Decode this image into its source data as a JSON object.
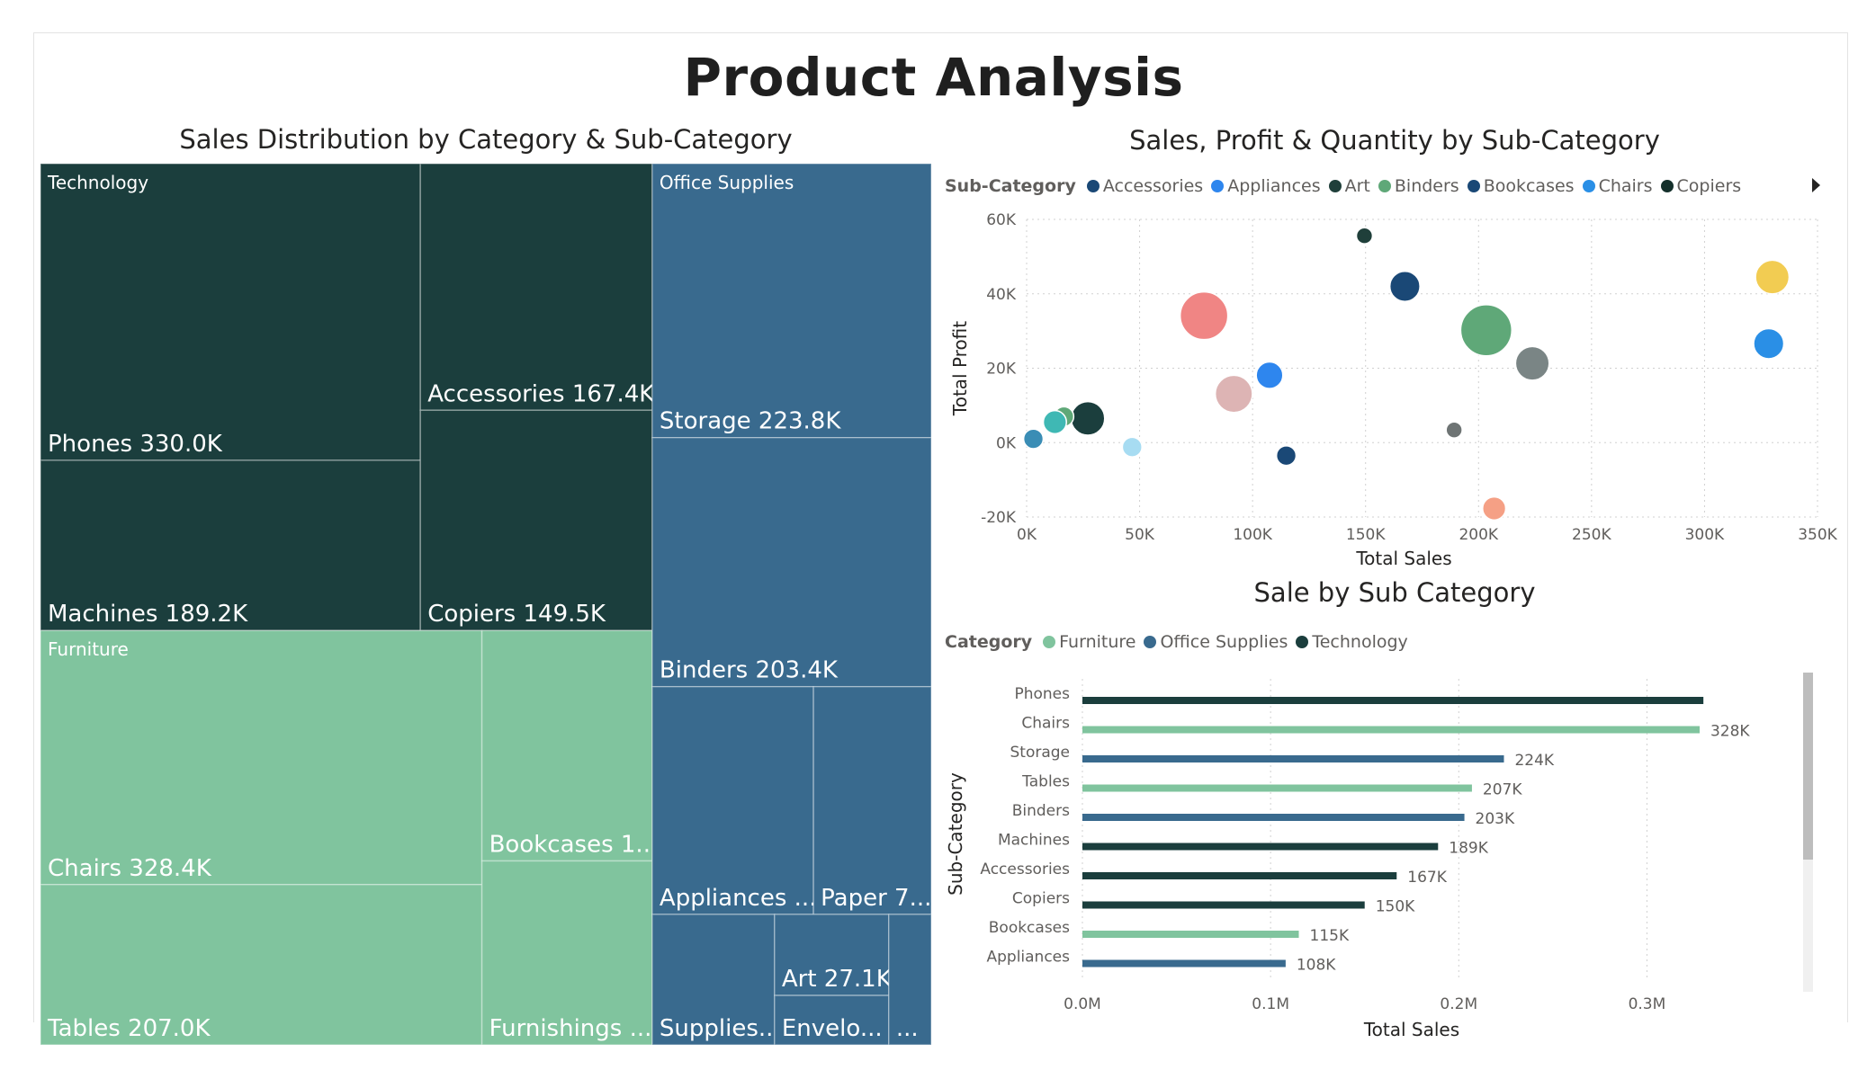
{
  "page": {
    "title": "Product Analysis"
  },
  "chart_data": [
    {
      "type": "treemap",
      "title": "Sales Distribution by Category & Sub-Category",
      "groups": [
        {
          "name": "Technology",
          "color": "#1B3E3D",
          "items": [
            {
              "label": "Phones 330.0K",
              "name": "Phones",
              "value": 330.0
            },
            {
              "label": "Machines 189.2K",
              "name": "Machines",
              "value": 189.2
            },
            {
              "label": "Accessories 167.4K",
              "name": "Accessories",
              "value": 167.4
            },
            {
              "label": "Copiers 149.5K",
              "name": "Copiers",
              "value": 149.5
            }
          ]
        },
        {
          "name": "Furniture",
          "color": "#80C49E",
          "items": [
            {
              "label": "Chairs 328.4K",
              "name": "Chairs",
              "value": 328.4
            },
            {
              "label": "Tables 207.0K",
              "name": "Tables",
              "value": 207.0
            },
            {
              "label": "Bookcases 1...",
              "name": "Bookcases",
              "value": 114.9
            },
            {
              "label": "Furnishings ...",
              "name": "Furnishings",
              "value": 91.7
            }
          ]
        },
        {
          "name": "Office Supplies",
          "color": "#396A8E",
          "items": [
            {
              "label": "Storage 223.8K",
              "name": "Storage",
              "value": 223.8
            },
            {
              "label": "Binders 203.4K",
              "name": "Binders",
              "value": 203.4
            },
            {
              "label": "Appliances ...",
              "name": "Appliances",
              "value": 107.5
            },
            {
              "label": "Paper 7...",
              "name": "Paper",
              "value": 78.5
            },
            {
              "label": "Supplies...",
              "name": "Supplies",
              "value": 46.7
            },
            {
              "label": "Art 27.1K",
              "name": "Art",
              "value": 27.1
            },
            {
              "label": "Envelo...",
              "name": "Envelopes",
              "value": 16.5
            },
            {
              "label": "...",
              "name": "Other",
              "value": 16.2
            }
          ]
        }
      ]
    },
    {
      "type": "scatter",
      "title": "Sales, Profit & Quantity by Sub-Category",
      "xlabel": "Total Sales",
      "ylabel": "Total Profit",
      "xlim": [
        0,
        350
      ],
      "ylim": [
        -20,
        60
      ],
      "x_ticks": [
        "0K",
        "50K",
        "100K",
        "150K",
        "200K",
        "250K",
        "300K",
        "350K"
      ],
      "y_ticks": [
        "60K",
        "40K",
        "20K",
        "0K",
        "-20K"
      ],
      "legend": {
        "title": "Sub-Category",
        "placement": "top",
        "items": [
          {
            "name": "Accessories",
            "color": "#1A4876"
          },
          {
            "name": "Appliances",
            "color": "#2E86EE"
          },
          {
            "name": "Art",
            "color": "#1F3F3A"
          },
          {
            "name": "Binders",
            "color": "#5FA878"
          },
          {
            "name": "Bookcases",
            "color": "#1A4876"
          },
          {
            "name": "Chairs",
            "color": "#2A8FE6"
          },
          {
            "name": "Copiers",
            "color": "#14302B"
          }
        ]
      },
      "points": [
        {
          "x": 149.5,
          "y": 55.6,
          "size": 1,
          "color": "#1F3F3A"
        },
        {
          "x": 167.4,
          "y": 42.0,
          "size": 5,
          "color": "#1A4876"
        },
        {
          "x": 330.0,
          "y": 44.5,
          "size": 6,
          "color": "#F2CC52"
        },
        {
          "x": 78.5,
          "y": 34.1,
          "size": 10,
          "color": "#F08584"
        },
        {
          "x": 203.4,
          "y": 30.2,
          "size": 11,
          "color": "#5FA878"
        },
        {
          "x": 223.8,
          "y": 21.3,
          "size": 6,
          "color": "#7A8585"
        },
        {
          "x": 328.4,
          "y": 26.6,
          "size": 5,
          "color": "#2A8FE6"
        },
        {
          "x": 107.5,
          "y": 18.1,
          "size": 4,
          "color": "#2E86EE"
        },
        {
          "x": 91.7,
          "y": 13.1,
          "size": 7,
          "color": "#DDB4B4"
        },
        {
          "x": 27.1,
          "y": 6.5,
          "size": 6,
          "color": "#1B3E3D"
        },
        {
          "x": 16.5,
          "y": 7.0,
          "size": 2,
          "color": "#5FA878"
        },
        {
          "x": 12.5,
          "y": 5.5,
          "size": 3,
          "color": "#3FB8B4"
        },
        {
          "x": 3.0,
          "y": 1.0,
          "size": 2,
          "color": "#3A8DB5"
        },
        {
          "x": 46.7,
          "y": -1.2,
          "size": 2,
          "color": "#A7DCF2"
        },
        {
          "x": 114.9,
          "y": -3.5,
          "size": 2,
          "color": "#1A4876"
        },
        {
          "x": 189.2,
          "y": 3.4,
          "size": 1,
          "color": "#6E7474"
        },
        {
          "x": 206.9,
          "y": -17.7,
          "size": 3,
          "color": "#F5A085"
        }
      ]
    },
    {
      "type": "bar",
      "orientation": "horizontal",
      "title": "Sale by Sub Category",
      "xlabel": "Total Sales",
      "ylabel": "Sub-Category",
      "xlim": [
        0,
        0.35
      ],
      "x_ticks": [
        "0.0M",
        "0.1M",
        "0.2M",
        "0.3M"
      ],
      "legend": {
        "title": "Category",
        "placement": "top-left",
        "items": [
          {
            "name": "Furniture",
            "color": "#80C49E"
          },
          {
            "name": "Office Supplies",
            "color": "#396A8E"
          },
          {
            "name": "Technology",
            "color": "#1B3E3D"
          }
        ]
      },
      "categories": [
        "Phones",
        "Chairs",
        "Storage",
        "Tables",
        "Binders",
        "Machines",
        "Accessories",
        "Copiers",
        "Bookcases",
        "Appliances"
      ],
      "bars": [
        {
          "category": "Phones",
          "series": "Technology",
          "value": 0.33,
          "label": ""
        },
        {
          "category": "Chairs",
          "series": "Furniture",
          "value": 0.328,
          "label": "328K"
        },
        {
          "category": "Storage",
          "series": "Office Supplies",
          "value": 0.224,
          "label": "224K"
        },
        {
          "category": "Tables",
          "series": "Furniture",
          "value": 0.207,
          "label": "207K"
        },
        {
          "category": "Binders",
          "series": "Office Supplies",
          "value": 0.203,
          "label": "203K"
        },
        {
          "category": "Machines",
          "series": "Technology",
          "value": 0.189,
          "label": "189K"
        },
        {
          "category": "Accessories",
          "series": "Technology",
          "value": 0.167,
          "label": "167K"
        },
        {
          "category": "Copiers",
          "series": "Technology",
          "value": 0.15,
          "label": "150K"
        },
        {
          "category": "Bookcases",
          "series": "Furniture",
          "value": 0.115,
          "label": "115K"
        },
        {
          "category": "Appliances",
          "series": "Office Supplies",
          "value": 0.108,
          "label": "108K"
        }
      ]
    }
  ]
}
